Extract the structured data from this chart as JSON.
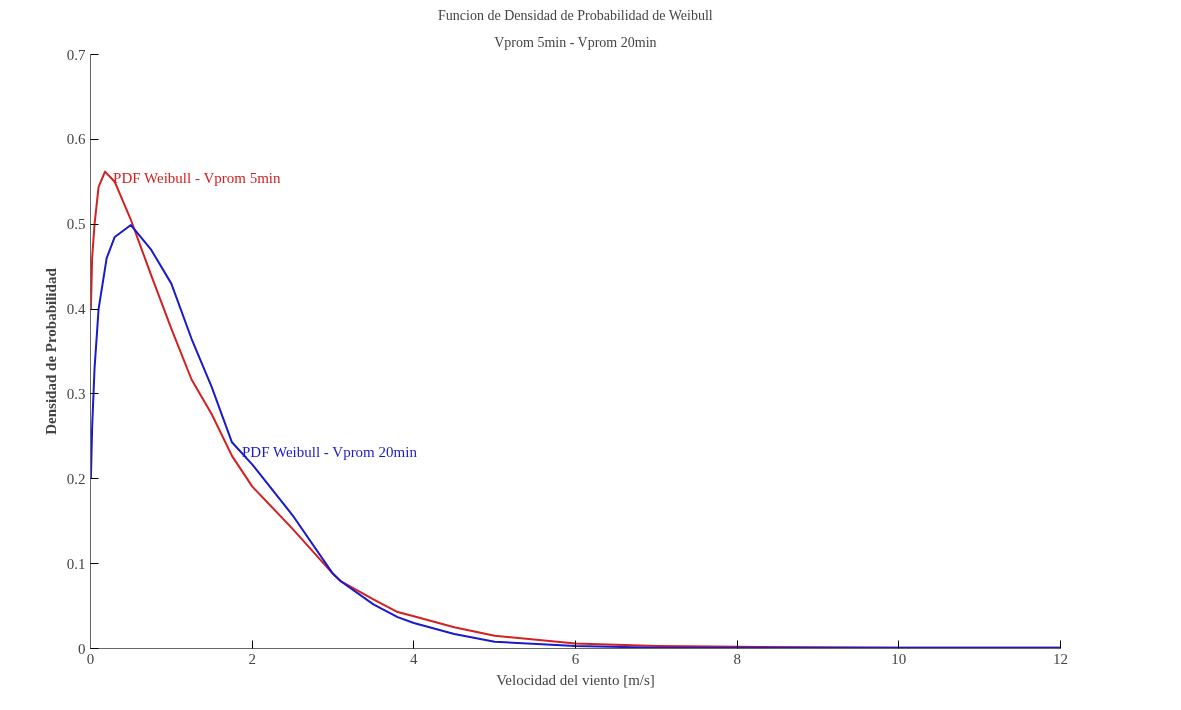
{
  "chart_data": {
    "type": "line",
    "title": "Funcion de Densidad de Probabilidad de Weibull",
    "subtitle": "Vprom 5min - Vprom 20min",
    "xlabel": "Velocidad del viento [m/s]",
    "ylabel": "Densidad de Probabilidad",
    "xlim": [
      0,
      12
    ],
    "ylim": [
      0,
      0.7
    ],
    "xticks": [
      0,
      2,
      4,
      6,
      8,
      10,
      12
    ],
    "yticks": [
      0,
      0.1,
      0.2,
      0.3,
      0.4,
      0.5,
      0.6,
      0.7
    ],
    "grid": false,
    "line_style": "solid",
    "marker": "none",
    "series": [
      {
        "name": "PDF Weibull - Vprom 5min",
        "color": "#d42020",
        "x": [
          0.005,
          0.02,
          0.05,
          0.1,
          0.18,
          0.3,
          0.5,
          0.75,
          1,
          1.25,
          1.5,
          1.75,
          2,
          2.5,
          3,
          3.1,
          3.5,
          3.8,
          4,
          4.5,
          5,
          6,
          7,
          8,
          10,
          12
        ],
        "values": [
          0.4,
          0.46,
          0.5,
          0.544,
          0.562,
          0.55,
          0.505,
          0.44,
          0.377,
          0.317,
          0.276,
          0.227,
          0.191,
          0.141,
          0.088,
          0.079,
          0.058,
          0.043,
          0.038,
          0.025,
          0.015,
          0.006,
          0.003,
          0.002,
          0.001,
          0.001
        ]
      },
      {
        "name": "PDF Weibull - Vprom 20min",
        "color": "#1a1acc",
        "x": [
          0.005,
          0.02,
          0.05,
          0.1,
          0.2,
          0.3,
          0.5,
          0.75,
          1,
          1.25,
          1.5,
          1.75,
          2,
          2.5,
          3,
          3.1,
          3.5,
          3.8,
          4,
          4.5,
          5,
          6,
          7,
          8,
          10,
          12
        ],
        "values": [
          0.2,
          0.26,
          0.33,
          0.4,
          0.46,
          0.485,
          0.499,
          0.47,
          0.43,
          0.365,
          0.308,
          0.243,
          0.217,
          0.157,
          0.088,
          0.079,
          0.052,
          0.037,
          0.03,
          0.017,
          0.008,
          0.003,
          0.001,
          0.001,
          0.001,
          0.001
        ]
      }
    ]
  }
}
